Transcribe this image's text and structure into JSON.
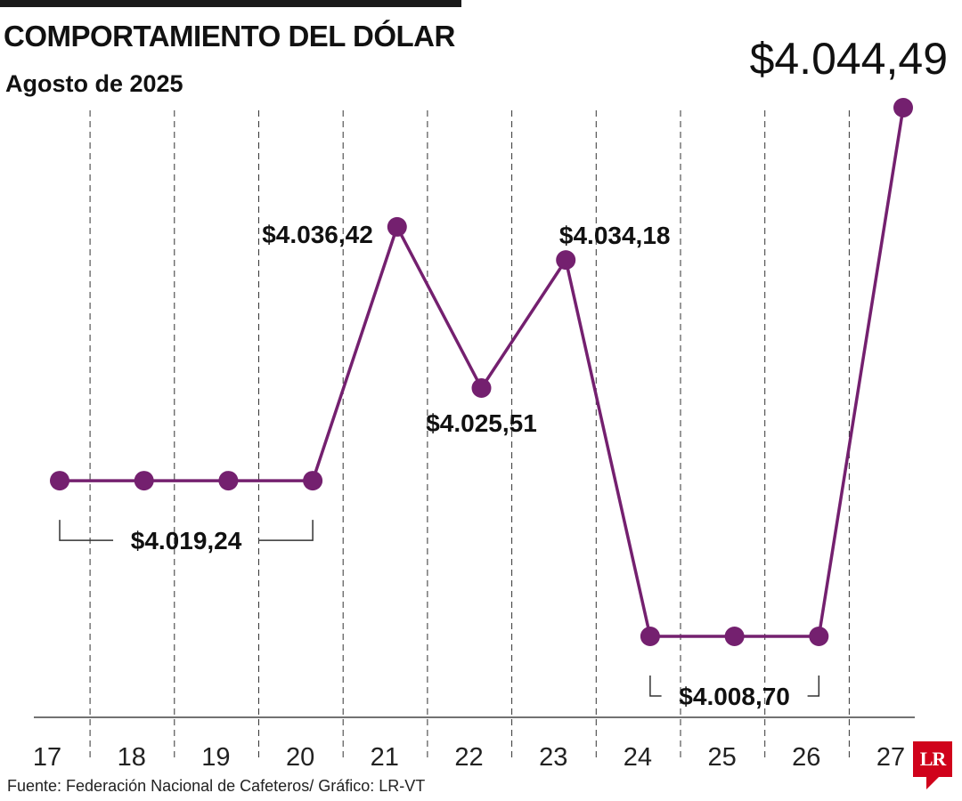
{
  "title": "COMPORTAMIENTO DEL DÓLAR",
  "subtitle": "Agosto de 2025",
  "source": "Fuente: Federación Nacional de Cafeteros/ Gráfico: LR-VT",
  "logo_text": "LR",
  "colors": {
    "series": "#74206f",
    "accent": "#d0021b"
  },
  "chart_data": {
    "type": "line",
    "x": [
      "17",
      "18",
      "19",
      "20",
      "21",
      "22",
      "23",
      "24",
      "25",
      "26",
      "27"
    ],
    "series": [
      {
        "values": [
          4019.24,
          4019.24,
          4019.24,
          4019.24,
          4036.42,
          4025.51,
          4034.18,
          4008.7,
          4008.7,
          4008.7,
          4044.49
        ]
      }
    ],
    "annotations": [
      {
        "text": "$4.019,24",
        "days": [
          "17",
          "20"
        ],
        "style": "bracket"
      },
      {
        "text": "$4.036,42",
        "day": "21"
      },
      {
        "text": "$4.025,51",
        "day": "22"
      },
      {
        "text": "$4.034,18",
        "day": "23"
      },
      {
        "text": "$4.008,70",
        "days": [
          "24",
          "26"
        ],
        "style": "bracket"
      },
      {
        "text": "$4.044,49",
        "day": "27",
        "style": "large"
      }
    ],
    "grid": "vertical dashed separators between days",
    "legend": "none"
  }
}
